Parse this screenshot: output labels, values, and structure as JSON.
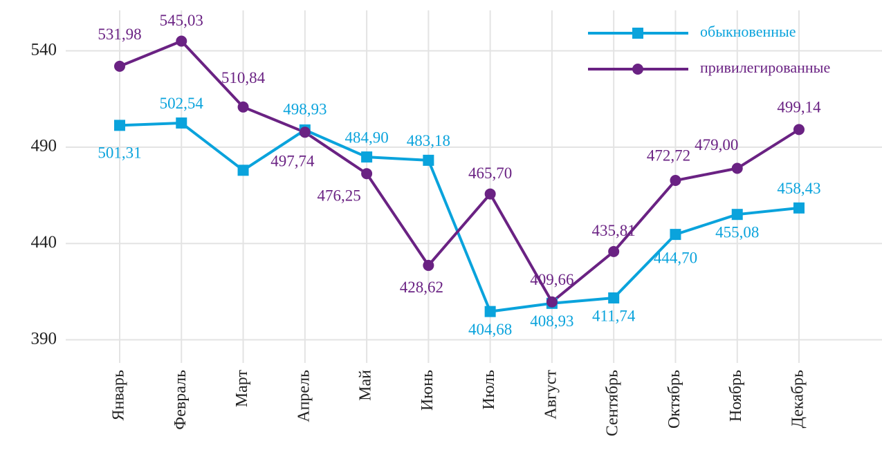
{
  "chart_data": {
    "type": "line",
    "categories": [
      "Январь",
      "Февраль",
      "Март",
      "Апрель",
      "Май",
      "Июнь",
      "Июль",
      "Август",
      "Сентябрь",
      "Октябрь",
      "Ноябрь",
      "Декабрь"
    ],
    "series": [
      {
        "name": "обыкновенные",
        "color": "#0aa3dc",
        "marker": "square",
        "values": [
          501.31,
          502.54,
          478,
          498.93,
          484.9,
          483.18,
          404.68,
          408.93,
          411.74,
          444.7,
          455.08,
          458.43
        ],
        "value_labels": [
          "501,31",
          "502,54",
          null,
          "498,93",
          "484,90",
          "483,18",
          "404,68",
          "408,93",
          "411,74",
          "444,70",
          "455,08",
          "458,43"
        ]
      },
      {
        "name": "привилегированные",
        "color": "#6a2283",
        "marker": "circle",
        "values": [
          531.98,
          545.03,
          510.84,
          497.74,
          476.25,
          428.62,
          465.7,
          409.66,
          435.81,
          472.72,
          479.0,
          499.14
        ],
        "value_labels": [
          "531,98",
          "545,03",
          "510,84",
          "497,74",
          "476,25",
          "428,62",
          "465,70",
          "409,66",
          "435,81",
          "472,72",
          "479,00",
          "499,14"
        ]
      }
    ],
    "ylim": [
      378,
      561
    ],
    "yticks": [
      390,
      440,
      490,
      540
    ],
    "grid": true,
    "legend": "top-right"
  }
}
